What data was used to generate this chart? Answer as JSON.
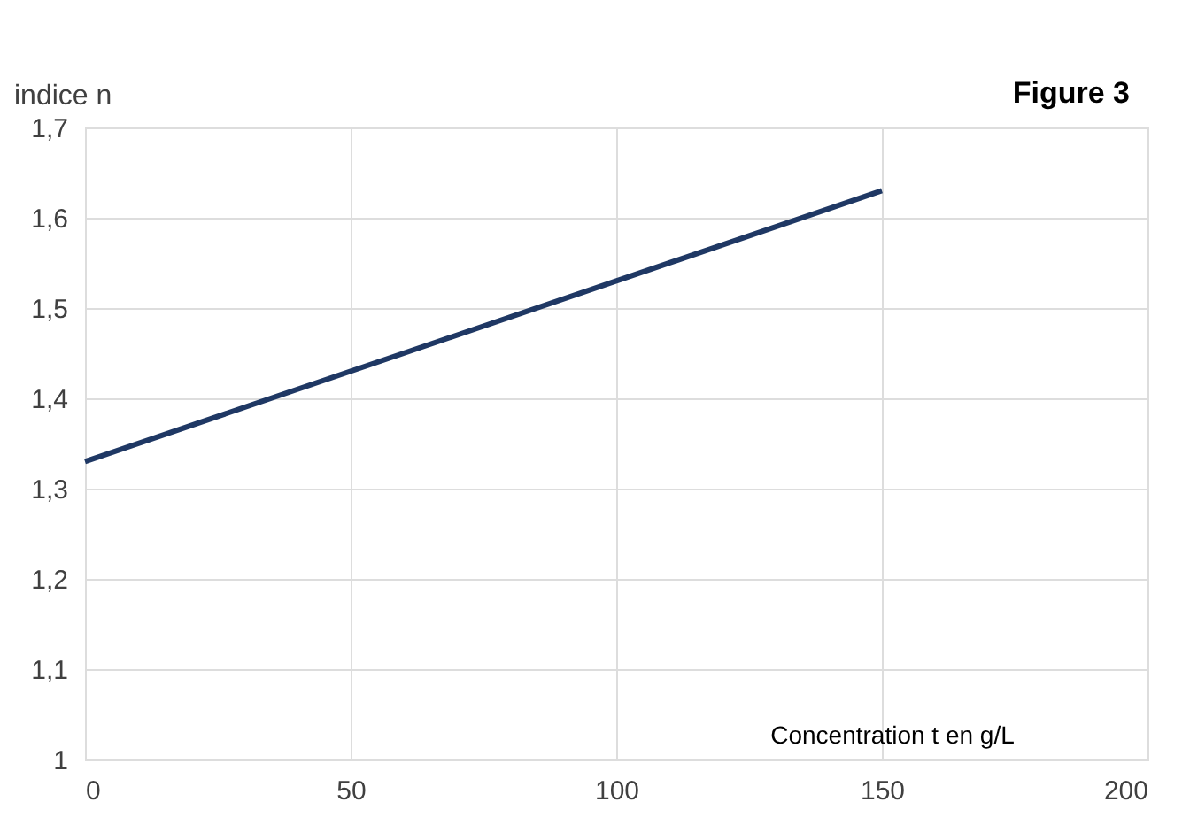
{
  "chart_data": {
    "type": "line",
    "title": "Figure 3",
    "ylabel": "indice n",
    "xlabel": "Concentration t en g/L",
    "x": [
      0,
      150
    ],
    "series": [
      {
        "color": "#1f3864",
        "values": [
          1.33,
          1.63
        ]
      }
    ],
    "xlim": [
      0,
      200
    ],
    "xticks": [
      0,
      50,
      100,
      150,
      200
    ],
    "ylim": [
      1,
      1.7
    ],
    "yticks": [
      1,
      {
        "value": 1.1,
        "label": "1,1"
      },
      {
        "value": 1.2,
        "label": "1,2"
      },
      {
        "value": 1.3,
        "label": "1,3"
      },
      {
        "value": 1.4,
        "label": "1,4"
      },
      {
        "value": 1.5,
        "label": "1,5"
      },
      {
        "value": 1.6,
        "label": "1,6"
      },
      {
        "value": 1.7,
        "label": "1,7"
      }
    ],
    "grid": true,
    "marker": "none",
    "line_style": "solid"
  }
}
